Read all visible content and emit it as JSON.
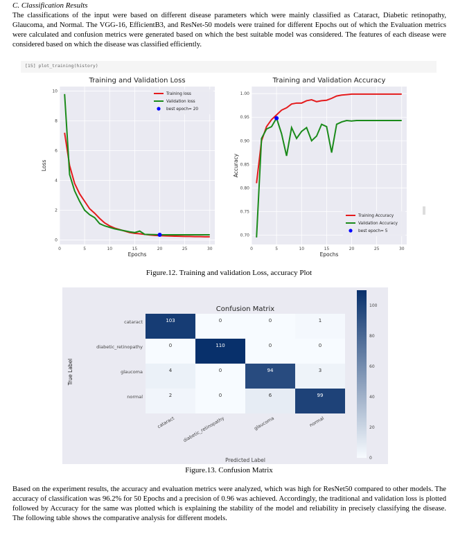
{
  "section": {
    "title": "C.   Classification Results"
  },
  "paragraphs": {
    "p1": "The classifications of the input were based on different disease parameters which were mainly classified as Cataract, Diabetic retinopathy, Glaucoma, and Normal. The VGG-16, EfficientB3, and ResNet-50 models were trained for different Epochs out of which the Evaluation metrics were calculated and confusion metrics were generated based on which the best suitable model was considered. The features of each disease were considered based on which the disease was classified efficiently.",
    "p2": "Based on the experiment results, the accuracy and evaluation metrics were analyzed, which was high for ResNet50 compared to other models. The accuracy of classification was 96.2% for 50 Epochs and a precision of 0.96 was achieved. Accordingly, the traditional and validation loss is plotted followed by Accuracy for the same was plotted which is explaining the stability of the model and reliability in precisely classifying the disease. The following table shows the comparative analysis for different models."
  },
  "notebook": {
    "code": "[15]  plot_training(history)"
  },
  "captions": {
    "fig12": "Figure.12. Training and validation Loss, accuracy Plot",
    "fig13": "Figure.13. Confusion Matrix"
  },
  "colors": {
    "train": "#e41a1c",
    "val": "#1a8a1a",
    "best": "#0000ff",
    "plot_bg": "#eaeaf2",
    "cm_dark": "#08306b",
    "cm_light": "#f7fbff"
  },
  "chart_data": [
    {
      "type": "line",
      "title": "Training and Validation Loss",
      "xlabel": "Epochs",
      "ylabel": "Loss",
      "xlim": [
        0,
        31
      ],
      "ylim": [
        -0.3,
        10.3
      ],
      "xticks": [
        "0",
        "5",
        "10",
        "15",
        "20",
        "25",
        "30"
      ],
      "yticks": [
        "0",
        "2",
        "4",
        "6",
        "8",
        "10"
      ],
      "legend_position": "top-right",
      "legend": [
        "Training loss",
        "Validation loss",
        "best epoch= 20"
      ],
      "x": [
        1,
        2,
        3,
        4,
        5,
        6,
        7,
        8,
        9,
        10,
        11,
        12,
        13,
        14,
        15,
        16,
        17,
        18,
        19,
        20,
        21,
        22,
        23,
        24,
        25,
        26,
        27,
        28,
        29,
        30
      ],
      "series": [
        {
          "name": "Training loss",
          "values": [
            7.2,
            5.0,
            3.8,
            3.1,
            2.6,
            2.1,
            1.8,
            1.45,
            1.15,
            0.95,
            0.8,
            0.7,
            0.6,
            0.5,
            0.45,
            0.42,
            0.38,
            0.34,
            0.31,
            0.29,
            0.28,
            0.27,
            0.26,
            0.25,
            0.24,
            0.24,
            0.23,
            0.23,
            0.22,
            0.22
          ]
        },
        {
          "name": "Validation loss",
          "values": [
            9.8,
            4.4,
            3.3,
            2.6,
            2.0,
            1.7,
            1.5,
            1.1,
            0.95,
            0.85,
            0.75,
            0.68,
            0.62,
            0.55,
            0.5,
            0.6,
            0.38,
            0.37,
            0.36,
            0.35,
            0.35,
            0.35,
            0.35,
            0.35,
            0.35,
            0.35,
            0.35,
            0.35,
            0.35,
            0.35
          ]
        }
      ],
      "best_point": {
        "x": 20,
        "y": 0.35,
        "label": "best epoch= 20"
      },
      "grid": true
    },
    {
      "type": "line",
      "title": "Training and Validation Accuracy",
      "xlabel": "Epochs",
      "ylabel": "Accuracy",
      "xlim": [
        0,
        31
      ],
      "ylim": [
        0.68,
        1.015
      ],
      "xticks": [
        "0",
        "5",
        "10",
        "15",
        "20",
        "25",
        "30"
      ],
      "yticks": [
        "0.70",
        "0.75",
        "0.80",
        "0.85",
        "0.90",
        "0.95",
        "1.00"
      ],
      "legend_position": "bottom-right",
      "legend": [
        "Training Accuracy",
        "Validation Accuracy",
        "best epoch= 5"
      ],
      "x": [
        1,
        2,
        3,
        4,
        5,
        6,
        7,
        8,
        9,
        10,
        11,
        12,
        13,
        14,
        15,
        16,
        17,
        18,
        19,
        20,
        21,
        22,
        23,
        24,
        25,
        26,
        27,
        28,
        29,
        30
      ],
      "series": [
        {
          "name": "Training Accuracy",
          "values": [
            0.81,
            0.9,
            0.93,
            0.945,
            0.955,
            0.965,
            0.97,
            0.978,
            0.98,
            0.98,
            0.985,
            0.987,
            0.983,
            0.985,
            0.986,
            0.99,
            0.995,
            0.997,
            0.998,
            0.999,
            0.999,
            0.999,
            0.999,
            0.999,
            0.999,
            0.999,
            0.999,
            0.999,
            0.999,
            0.999
          ]
        },
        {
          "name": "Validation Accuracy",
          "values": [
            0.695,
            0.905,
            0.925,
            0.93,
            0.948,
            0.915,
            0.868,
            0.928,
            0.905,
            0.92,
            0.928,
            0.9,
            0.91,
            0.935,
            0.93,
            0.875,
            0.935,
            0.94,
            0.943,
            0.942,
            0.943,
            0.943,
            0.943,
            0.943,
            0.943,
            0.943,
            0.943,
            0.943,
            0.943,
            0.943
          ]
        }
      ],
      "best_point": {
        "x": 5,
        "y": 0.948,
        "label": "best epoch= 5"
      },
      "grid": true
    },
    {
      "type": "heatmap",
      "title": "Confusion Matrix",
      "xlabel": "Predicted Label",
      "ylabel": "True Label",
      "categories": [
        "cataract",
        "diabetic_retinopathy",
        "glaucoma",
        "normal"
      ],
      "matrix": [
        [
          103,
          0,
          0,
          1
        ],
        [
          0,
          110,
          0,
          0
        ],
        [
          4,
          0,
          94,
          3
        ],
        [
          2,
          0,
          6,
          99
        ]
      ],
      "colorbar_ticks": [
        "0",
        "20",
        "40",
        "60",
        "80",
        "100"
      ],
      "vmax": 110
    }
  ]
}
